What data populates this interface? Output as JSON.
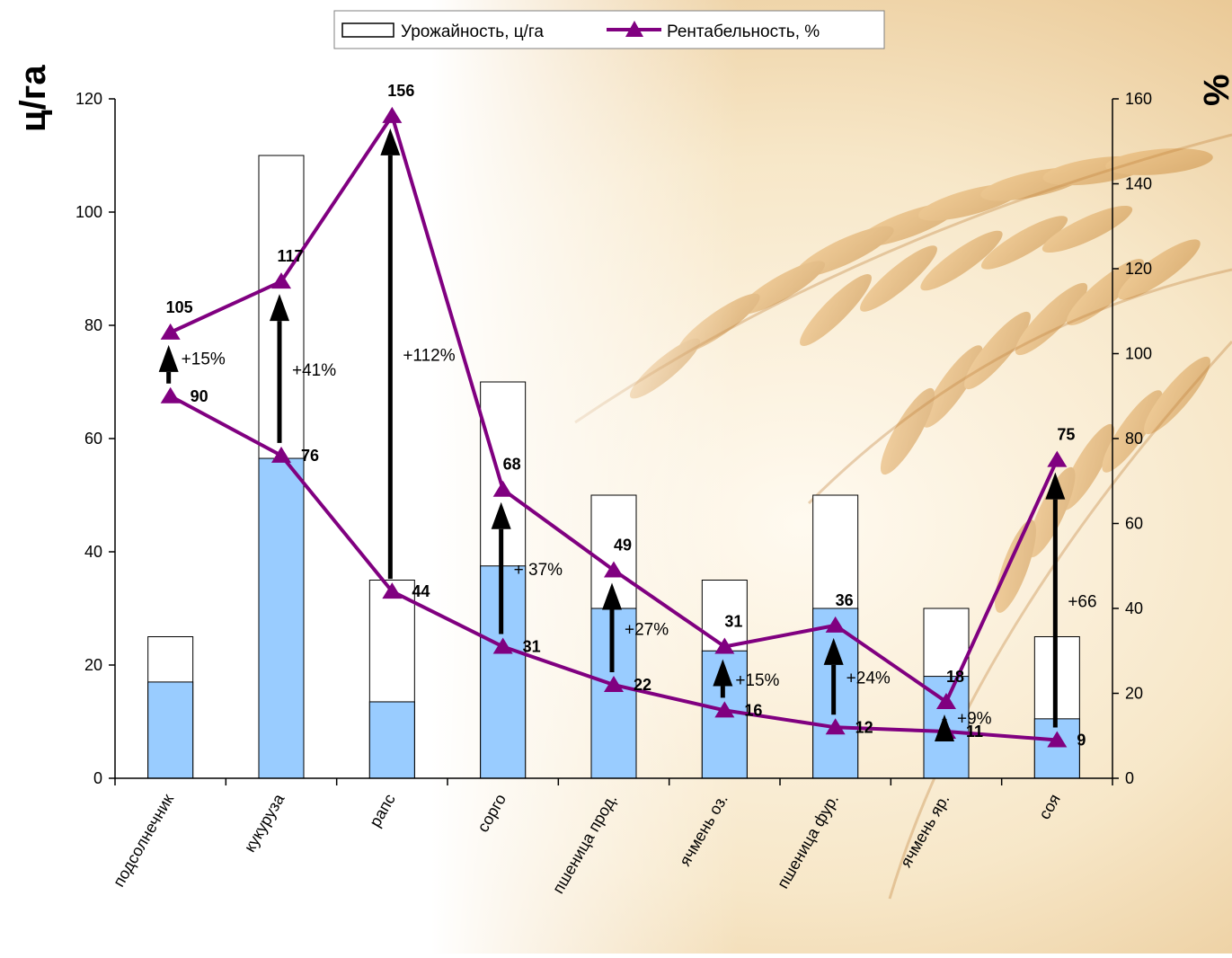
{
  "chart_data": {
    "type": "bar",
    "categories": [
      "подсолнечник",
      "кукуруза",
      "рапс",
      "сорго",
      "пшеница прод.",
      "ячмень оз.",
      "пшеница фур.",
      "ячмень яр.",
      "соя"
    ],
    "series": [
      {
        "name": "Урожайность, ц/га",
        "type": "bar",
        "axis": "left",
        "role": "potential",
        "values": [
          25,
          110,
          35,
          70,
          50,
          35,
          50,
          30,
          25
        ]
      },
      {
        "name": "",
        "type": "bar",
        "axis": "left",
        "role": "actual",
        "values": [
          17,
          56.5,
          13.5,
          37.5,
          30,
          22.5,
          30,
          18,
          10.5
        ]
      },
      {
        "name": "Рентабельность, %",
        "type": "line",
        "axis": "right",
        "role": "potential",
        "values": [
          105,
          117,
          156,
          68,
          49,
          31,
          36,
          18,
          75
        ]
      },
      {
        "name": "",
        "type": "line",
        "axis": "right",
        "role": "actual",
        "values": [
          90,
          76,
          44,
          31,
          22,
          16,
          12,
          11,
          9
        ]
      }
    ],
    "increments": [
      "+15%",
      "+41%",
      "+112%",
      "+ 37%",
      "+27%",
      "+15%",
      "+24%",
      "+9%",
      "+66"
    ],
    "y_left": {
      "label": "ц/га",
      "min": 0,
      "max": 120,
      "ticks": [
        "0",
        "20",
        "40",
        "60",
        "80",
        "100",
        "120"
      ]
    },
    "y_right": {
      "label": "%",
      "min": 0,
      "max": 160,
      "ticks": [
        "0",
        "20",
        "40",
        "60",
        "80",
        "100",
        "120",
        "140",
        "160"
      ]
    },
    "legend": {
      "position": "top-center",
      "items": [
        "Урожайность, ц/га",
        "Рентабельность, %"
      ]
    },
    "grid": false,
    "colors": {
      "actual_bar": "#99ccff",
      "line": "#800080",
      "arrow": "#000000",
      "potential_bar": "#ffffff"
    }
  }
}
